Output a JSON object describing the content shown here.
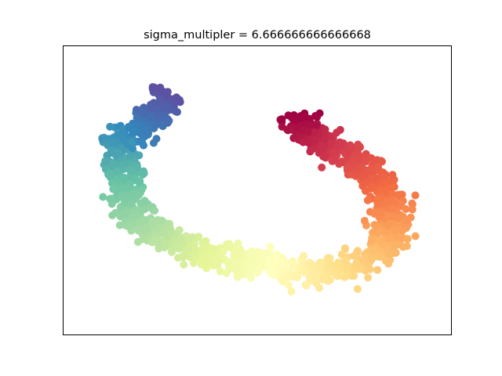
{
  "chart_data": {
    "type": "scatter",
    "title": "sigma_multipler = 6.666666666666668",
    "xlabel": "",
    "ylabel": "",
    "xticks": [],
    "yticks": [],
    "grid": false,
    "legend": "none",
    "xlim": [
      0,
      100
    ],
    "ylim": [
      0,
      100
    ],
    "colormap": "Spectral",
    "marker_size": 10,
    "curve": {
      "description_points_xy": [
        [
          27.5,
          83.5
        ],
        [
          25,
          80
        ],
        [
          22.5,
          72.7
        ],
        [
          15,
          68
        ],
        [
          14.4,
          64
        ],
        [
          15.4,
          58
        ],
        [
          16.3,
          50
        ],
        [
          18.5,
          42.5
        ],
        [
          21.8,
          37.3
        ],
        [
          26.3,
          33.5
        ],
        [
          32,
          30.3
        ],
        [
          39,
          27.7
        ],
        [
          47,
          25.6
        ],
        [
          55,
          23.6
        ],
        [
          62,
          21.8
        ],
        [
          68.5,
          21.8
        ],
        [
          74.5,
          23.7
        ],
        [
          80,
          26.5
        ],
        [
          84.3,
          31.5
        ],
        [
          85.3,
          37.5
        ],
        [
          84.5,
          43.3
        ],
        [
          83,
          49
        ],
        [
          80,
          55
        ],
        [
          75.5,
          60.5
        ],
        [
          70,
          64.7
        ],
        [
          65.2,
          67.2
        ],
        [
          61,
          70.3
        ],
        [
          60.4,
          76
        ]
      ],
      "n_points": 1500,
      "thickness": 7.5,
      "color_value_range": [
        0,
        1
      ]
    }
  }
}
